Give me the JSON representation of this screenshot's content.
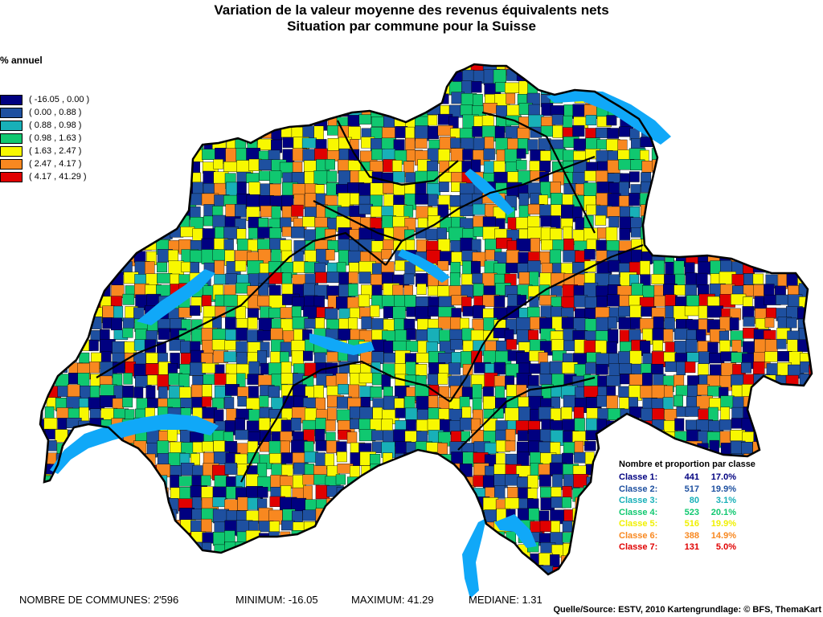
{
  "title": "Variation de la valeur moyenne des revenus équivalents nets",
  "subtitle": "Situation par commune pour la Suisse",
  "legend": {
    "title": "% annuel",
    "items": [
      {
        "range": "( -16.05 , 0.00 )",
        "color": "#000080"
      },
      {
        "range": "( 0.00 , 0.88 )",
        "color": "#1e50a0"
      },
      {
        "range": "( 0.88 , 0.98 )",
        "color": "#18b0b8"
      },
      {
        "range": "( 0.98 , 1.63 )",
        "color": "#10c870"
      },
      {
        "range": "( 1.63 , 2.47 )",
        "color": "#f8f800"
      },
      {
        "range": "( 2.47 , 4.17 )",
        "color": "#f88820"
      },
      {
        "range": "( 4.17 , 41.29 )",
        "color": "#e00000"
      }
    ]
  },
  "stats": {
    "title": "Nombre et proportion par classe",
    "rows": [
      {
        "label": "Classe 1:",
        "count": "441",
        "pct": "17.0%",
        "color": "#000080"
      },
      {
        "label": "Classe 2:",
        "count": "517",
        "pct": "19.9%",
        "color": "#1e50a0"
      },
      {
        "label": "Classe 3:",
        "count": "80",
        "pct": "3.1%",
        "color": "#18b0b8"
      },
      {
        "label": "Classe 4:",
        "count": "523",
        "pct": "20.1%",
        "color": "#10c870"
      },
      {
        "label": "Classe 5:",
        "count": "516",
        "pct": "19.9%",
        "color": "#f0f000"
      },
      {
        "label": "Classe 6:",
        "count": "388",
        "pct": "14.9%",
        "color": "#f88820"
      },
      {
        "label": "Classe 7:",
        "count": "131",
        "pct": "5.0%",
        "color": "#e00000"
      }
    ]
  },
  "footer": {
    "communes": "NOMBRE DE COMMUNES: 2'596",
    "minimum": "MINIMUM: -16.05",
    "maximum": "MAXIMUM: 41.29",
    "mediane": "MEDIANE: 1.31"
  },
  "source": "Quelle/Source: ESTV, 2010 Kartengrundlage: © BFS, ThemaKart",
  "colors": {
    "lake": "#10a8f8",
    "border": "#000000"
  }
}
